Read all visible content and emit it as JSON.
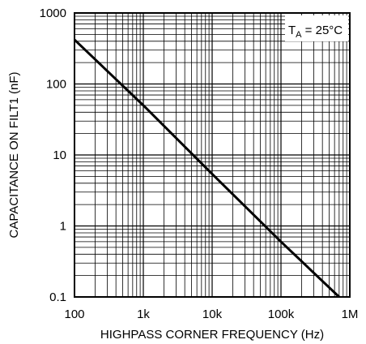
{
  "chart_data": {
    "type": "line",
    "title": "",
    "xlabel": "HIGHPASS CORNER FREQUENCY (Hz)",
    "ylabel": "CAPACITANCE ON FILT1 (nF)",
    "xscale": "log",
    "yscale": "log",
    "xlim": [
      100,
      1000000
    ],
    "ylim": [
      0.1,
      1000
    ],
    "grid": true,
    "x_tick_labels": [
      "100",
      "1k",
      "10k",
      "100k",
      "1M"
    ],
    "y_tick_labels": [
      "0.1",
      "1",
      "10",
      "100",
      "1000"
    ],
    "annotation": {
      "symbol": "T",
      "subscript": "A",
      "text": " = 25°C"
    },
    "series": [
      {
        "x": [
          100,
          1000,
          10000,
          100000,
          700000
        ],
        "y": [
          420,
          50,
          5.4,
          0.6,
          0.1
        ]
      }
    ]
  }
}
